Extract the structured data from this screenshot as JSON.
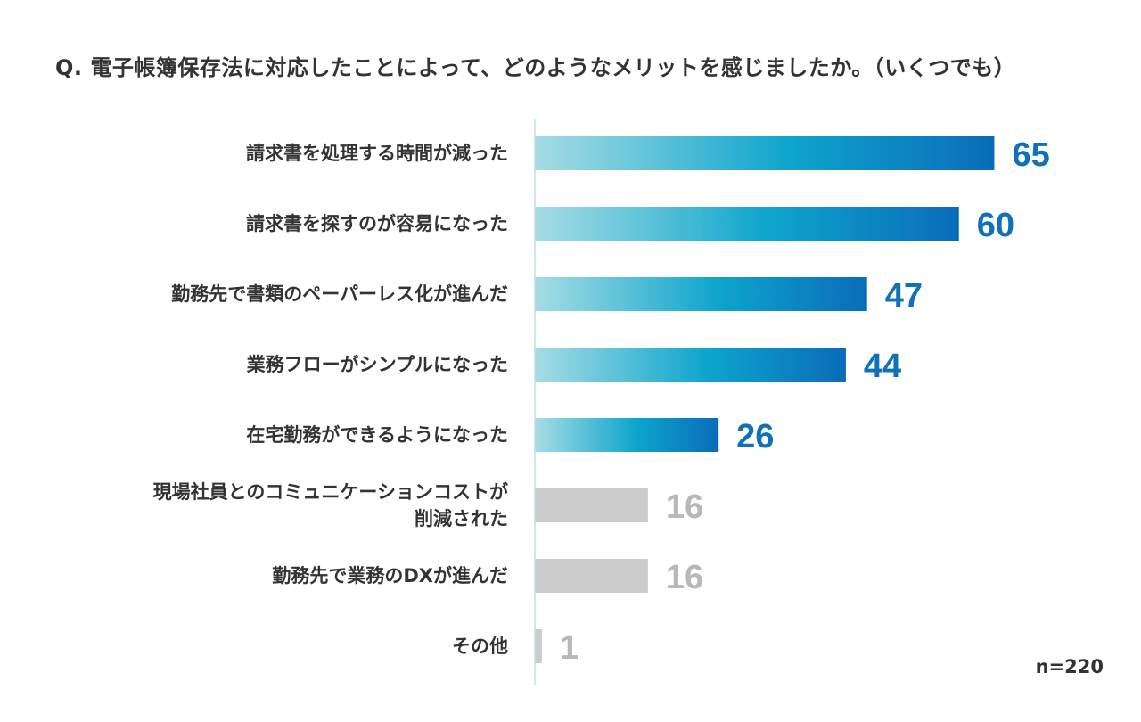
{
  "chart_data": {
    "type": "bar",
    "orientation": "horizontal",
    "title": "Q. 電子帳簿保存法に対応したことによって、どのようなメリットを感じましたか。（いくつでも）",
    "categories": [
      "請求書を処理する時間が減った",
      "請求書を探すのが容易になった",
      "勤務先で書類のペーパーレス化が進んだ",
      "業務フローがシンプルになった",
      "在宅勤務ができるようになった",
      "現場社員とのコミュニケーションコストが\n削減された",
      "勤務先で業務のDXが進んだ",
      "その他"
    ],
    "values": [
      65,
      60,
      47,
      44,
      26,
      16,
      16,
      1
    ],
    "highlighted": [
      true,
      true,
      true,
      true,
      true,
      false,
      false,
      false
    ],
    "xlim": [
      0,
      70
    ],
    "grid": false,
    "legend": "none",
    "sample_size": "n=220",
    "colors": {
      "bar_gradient_start": "#a6dde4",
      "bar_gradient_mid": "#0ea5cc",
      "bar_gradient_end": "#0a6cb9",
      "value_label_highlight": "#0f72b8",
      "bar_muted": "#cccccc",
      "value_label_muted": "#b8b8b8",
      "axis_line": "#bfdde3"
    }
  }
}
